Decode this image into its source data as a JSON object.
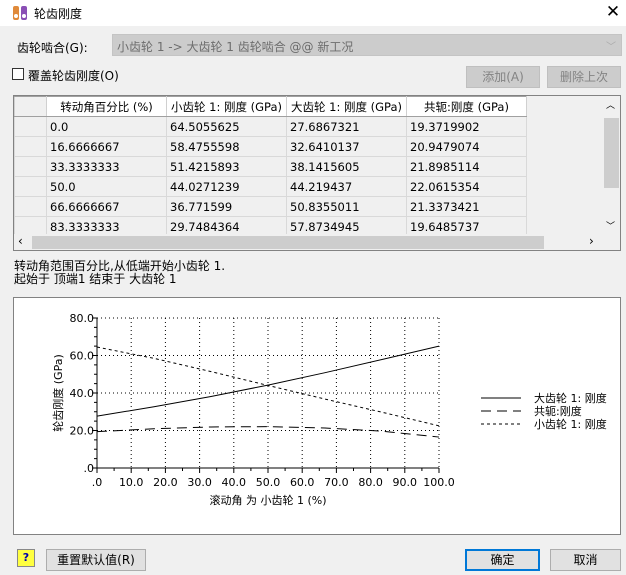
{
  "window": {
    "title": "轮齿刚度",
    "close_icon": "close-icon"
  },
  "mesh": {
    "label": "齿轮啮合(G):",
    "value": "小齿轮 1 -> 大齿轮 1 齿轮啮合 @@ 新工况"
  },
  "override": {
    "label": "覆盖轮齿刚度(O)",
    "checked": false
  },
  "buttons": {
    "add": "添加(A)",
    "delete_last": "删除上次",
    "reset": "重置默认值(R)",
    "ok": "确定",
    "cancel": "取消"
  },
  "table": {
    "headers": [
      "转动角百分比 (%)",
      "小齿轮 1: 刚度 (GPa)",
      "大齿轮 1: 刚度 (GPa)",
      "共轭:刚度 (GPa)"
    ],
    "rows": [
      [
        "0.0",
        "64.5055625",
        "27.6867321",
        "19.3719902"
      ],
      [
        "16.6666667",
        "58.4755598",
        "32.6410137",
        "20.9479074"
      ],
      [
        "33.3333333",
        "51.4215893",
        "38.1415605",
        "21.8985114"
      ],
      [
        "50.0",
        "44.0271239",
        "44.219437",
        "22.0615354"
      ],
      [
        "66.6666667",
        "36.771599",
        "50.8355011",
        "21.3373421"
      ],
      [
        "83.3333333",
        "29.7484364",
        "57.8734945",
        "19.6485737"
      ]
    ]
  },
  "notes": [
    "转动角范围百分比,从低端开始小齿轮 1.",
    "起始于 顶端1 结束于 大齿轮 1"
  ],
  "chart_data": {
    "type": "line",
    "xlabel": "滚动角 为 小齿轮 1 (%)",
    "ylabel": "轮齿刚度 (GPa)",
    "xlim": [
      0,
      100
    ],
    "ylim": [
      0,
      80
    ],
    "xticks": [
      ".0",
      "10.0",
      "20.0",
      "30.0",
      "40.0",
      "50.0",
      "60.0",
      "70.0",
      "80.0",
      "90.0",
      "100.0"
    ],
    "yticks": [
      ".0",
      "20.0",
      "40.0",
      "60.0",
      "80.0"
    ],
    "grid": true,
    "legend": "right",
    "x": [
      0,
      16.6666667,
      33.3333333,
      50,
      66.6666667,
      83.3333333,
      100
    ],
    "series": [
      {
        "name": "大齿轮 1: 刚度",
        "style": "solid",
        "values": [
          27.6867321,
          32.6410137,
          38.1415605,
          44.219437,
          50.8355011,
          57.8734945,
          65
        ]
      },
      {
        "name": "共轭:刚度",
        "style": "long-dash",
        "values": [
          19.3719902,
          20.9479074,
          21.8985114,
          22.0615354,
          21.3373421,
          19.6485737,
          16.5
        ]
      },
      {
        "name": "小齿轮 1: 刚度",
        "style": "short-dash",
        "values": [
          64.5055625,
          58.4755598,
          51.4215893,
          44.0271239,
          36.771599,
          29.7484364,
          22.5
        ]
      }
    ]
  }
}
